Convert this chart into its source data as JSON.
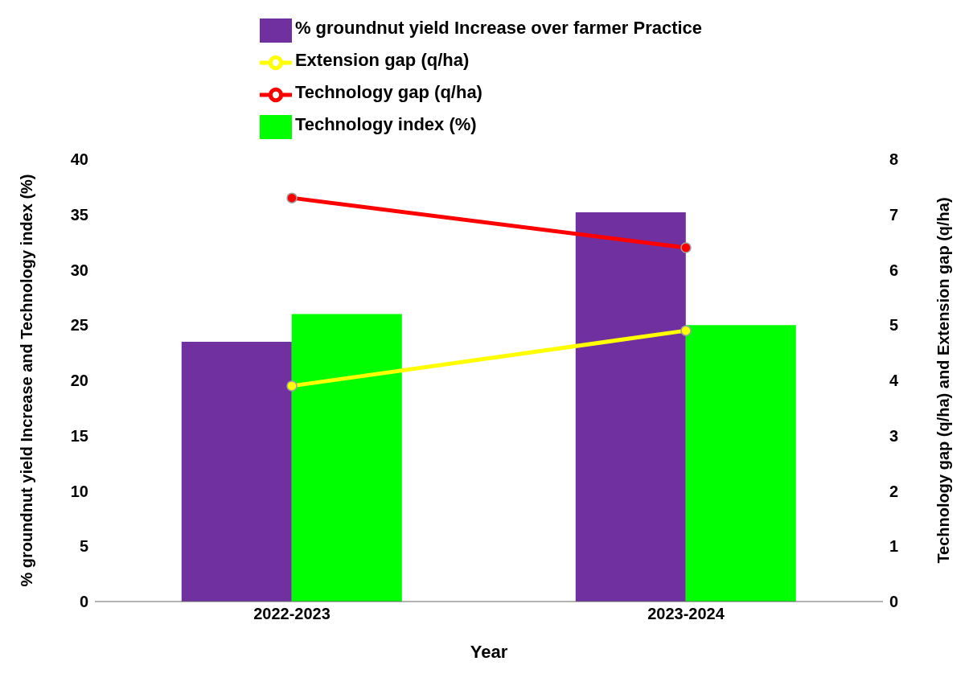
{
  "chart_data": {
    "type": "bar",
    "xlabel": "Year",
    "ylabel": "% groundnut yield  Increase and Technology index (%)",
    "y2label": "Technology gap (q/ha) and Extension gap (q/ha)",
    "categories": [
      "2022-2023",
      "2023-2024"
    ],
    "series": [
      {
        "name": "% groundnut yield  Increase over farmer Practice",
        "color": "#7030a0",
        "values": [
          23.5,
          35.2
        ]
      },
      {
        "name": "Technology index (%)",
        "color": "#00ff00",
        "values": [
          26,
          25
        ]
      },
      {
        "name": "Technology gap (q/ha)",
        "type": "line",
        "axis": "y2",
        "color": "#ff0000",
        "values": [
          7.3,
          6.4
        ]
      },
      {
        "name": "Extension gap (q/ha)",
        "type": "line",
        "axis": "y2",
        "color": "#ffff00",
        "values": [
          3.9,
          4.9
        ]
      }
    ],
    "ylim": [
      0,
      40
    ],
    "yticks": [
      0,
      5,
      10,
      15,
      20,
      25,
      30,
      35,
      40
    ],
    "y2lim": [
      0,
      8
    ],
    "y2ticks": [
      0,
      1,
      2,
      3,
      4,
      5,
      6,
      7,
      8
    ],
    "legend": "top",
    "marker": "circle",
    "grid": false
  }
}
